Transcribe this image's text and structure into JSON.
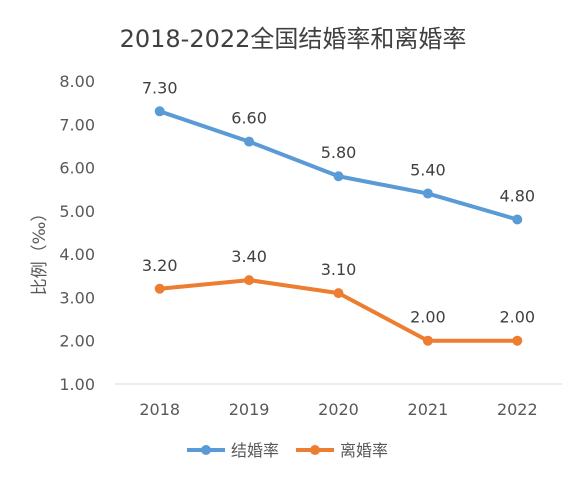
{
  "chart_data": {
    "type": "line",
    "title": "2018-2022全国结婚率和离婚率",
    "xlabel": "",
    "ylabel": "比例（‰）",
    "categories": [
      "2018",
      "2019",
      "2020",
      "2021",
      "2022"
    ],
    "ylim": [
      1.0,
      8.0
    ],
    "yticks": [
      "1.00",
      "2.00",
      "3.00",
      "4.00",
      "5.00",
      "6.00",
      "7.00",
      "8.00"
    ],
    "grid": false,
    "legend_position": "bottom",
    "series": [
      {
        "name": "结婚率",
        "color": "#5B9BD5",
        "values": [
          7.3,
          6.6,
          5.8,
          5.4,
          4.8
        ],
        "labels": [
          "7.30",
          "6.60",
          "5.80",
          "5.40",
          "4.80"
        ]
      },
      {
        "name": "离婚率",
        "color": "#ED7D31",
        "values": [
          3.2,
          3.4,
          3.1,
          2.0,
          2.0
        ],
        "labels": [
          "3.20",
          "3.40",
          "3.10",
          "2.00",
          "2.00"
        ]
      }
    ]
  }
}
